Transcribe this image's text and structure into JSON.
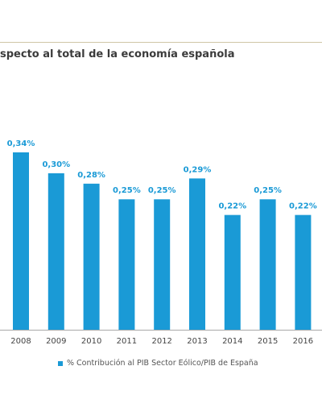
{
  "title": "specto al total de la economía española",
  "colors": {
    "bar": "#1a9ad6",
    "label": "#1a9ad6",
    "axis": "#a9a9a9",
    "tick": "#444444",
    "rule": "#cfc6a6"
  },
  "chart_data": {
    "type": "bar",
    "title": "specto al total de la economía española",
    "categories": [
      "2008",
      "2009",
      "2010",
      "2011",
      "2012",
      "2013",
      "2014",
      "2015",
      "2016"
    ],
    "series": [
      {
        "name": "% Contribución al PIB Sector Eólico/PIB de España",
        "values": [
          0.34,
          0.3,
          0.28,
          0.25,
          0.25,
          0.29,
          0.22,
          0.25,
          0.22
        ],
        "labels": [
          "0,34%",
          "0,30%",
          "0,28%",
          "0,25%",
          "0,25%",
          "0,29%",
          "0,22%",
          "0,25%",
          "0,22%"
        ]
      }
    ],
    "xlabel": "",
    "ylabel": "",
    "ylim": [
      0,
      0.34
    ],
    "grid": false,
    "legend": "bottom"
  }
}
